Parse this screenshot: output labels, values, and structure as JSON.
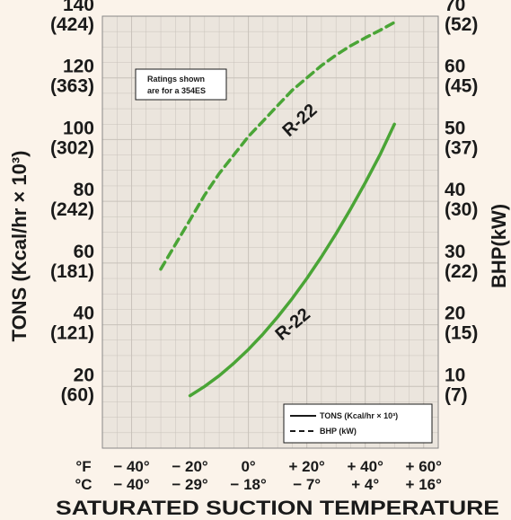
{
  "chart_data": {
    "type": "line",
    "title": "",
    "xlabel": "SATURATED SUCTION TEMPERATURE",
    "xunit_f": "°F",
    "xunit_c": "°C",
    "x_ticks_f": [
      "− 40°",
      "− 20°",
      "0°",
      "+ 20°",
      "+ 40°",
      "+ 60°"
    ],
    "x_ticks_c": [
      "− 40°",
      "− 29°",
      "− 18°",
      "− 7°",
      "+ 4°",
      "+ 16°"
    ],
    "xlim": [
      -50,
      65
    ],
    "y_left_label": "TONS (Kcal/hr × 10³)",
    "y_left_ticks": [
      "140",
      "120",
      "100",
      "80",
      "60",
      "40",
      "20"
    ],
    "y_left_ticks_metric": [
      "(424)",
      "(363)",
      "(302)",
      "(242)",
      "(181)",
      "(121)",
      "(60)"
    ],
    "y_left_lim": [
      0,
      140
    ],
    "y_right_label": "BHP(kW)",
    "y_right_ticks": [
      "70",
      "60",
      "50",
      "40",
      "30",
      "20",
      "10"
    ],
    "y_right_ticks_metric": [
      "(52)",
      "(45)",
      "(37)",
      "(30)",
      "(22)",
      "(15)",
      "(7)"
    ],
    "y_right_lim": [
      0,
      70
    ],
    "grid": true,
    "note": [
      "Ratings shown",
      "are for a 354ES"
    ],
    "legend": {
      "placement": "bottom-right",
      "entries": [
        "TONS (Kcal/hr × 10³)",
        "BHP (kW)"
      ]
    },
    "series": [
      {
        "name": "TONS (Kcal/hr × 10³)",
        "axis": "left",
        "style": "solid",
        "curve_label": "R-22",
        "x": [
          -20,
          -15,
          -10,
          -5,
          0,
          5,
          10,
          15,
          20,
          25,
          30,
          35,
          40,
          45,
          50
        ],
        "y": [
          17,
          20,
          23.5,
          27.5,
          32,
          37,
          42.5,
          48.5,
          55,
          62,
          69.5,
          77.5,
          86,
          95,
          105
        ]
      },
      {
        "name": "BHP (kW)",
        "axis": "right",
        "style": "dashed",
        "curve_label": "R-22",
        "x": [
          -30,
          -25,
          -20,
          -15,
          -10,
          -5,
          0,
          5,
          10,
          15,
          20,
          25,
          30,
          35,
          40,
          45,
          50
        ],
        "y": [
          29,
          33,
          37,
          41,
          44.5,
          47.5,
          50.5,
          53,
          55.5,
          58,
          60,
          62,
          63.7,
          65.2,
          66.5,
          67.7,
          69
        ]
      }
    ]
  },
  "colors": {
    "background": "#fbf3ea",
    "plot_background": "#ebe5dd",
    "grid": "#c8c2ba",
    "series": "#4aa536"
  }
}
